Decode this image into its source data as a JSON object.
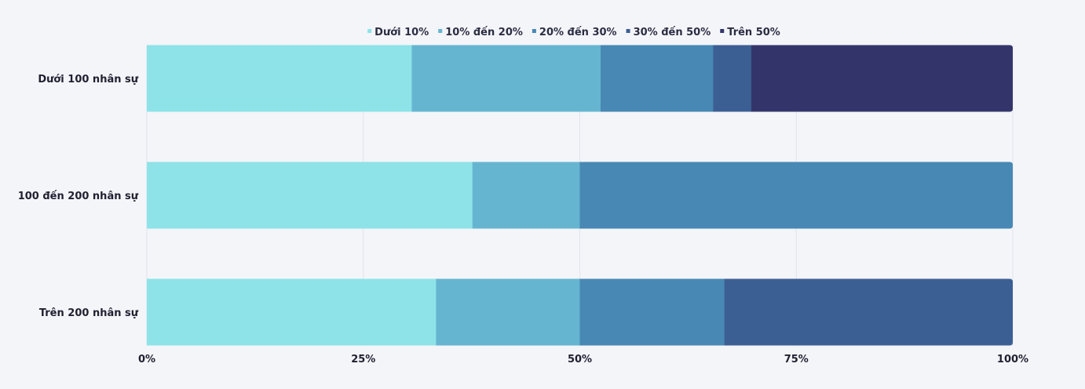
{
  "chart_data": {
    "type": "bar",
    "orientation": "horizontal",
    "stacked": "percent",
    "title": "",
    "xlabel": "",
    "ylabel": "",
    "xlim": [
      0,
      100
    ],
    "grid": true,
    "legend_position": "top-center",
    "categories": [
      "Dưới 100 nhân sự",
      "100 đến 200 nhân sự",
      "Trên 200 nhân sự"
    ],
    "x_ticks": [
      "0%",
      "25%",
      "50%",
      "75%",
      "100%"
    ],
    "x_tick_values": [
      0,
      25,
      50,
      75,
      100
    ],
    "series": [
      {
        "name": "Dưới 10%",
        "color": "#8de3e8",
        "values": [
          30.6,
          37.6,
          33.4
        ]
      },
      {
        "name": "10% đến 20%",
        "color": "#65b5d1",
        "values": [
          21.8,
          12.4,
          16.6
        ]
      },
      {
        "name": "20% đến 30%",
        "color": "#4888b4",
        "values": [
          13.0,
          50.0,
          16.7
        ]
      },
      {
        "name": "30% đến 50%",
        "color": "#3c5f93",
        "values": [
          4.4,
          0,
          33.3
        ]
      },
      {
        "name": "Trên 50%",
        "color": "#33356a",
        "values": [
          30.2,
          0,
          0
        ]
      }
    ]
  }
}
